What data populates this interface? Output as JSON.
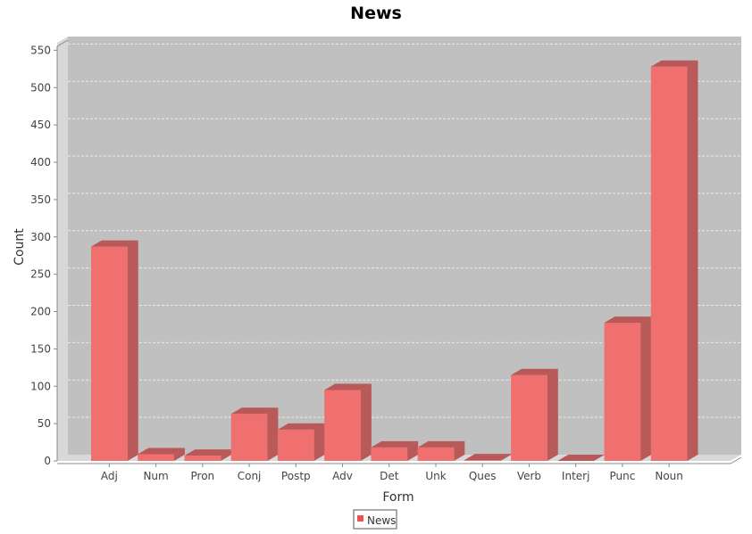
{
  "chart_data": {
    "type": "bar",
    "title": "News",
    "xlabel": "Form",
    "ylabel": "Count",
    "categories": [
      "Adj",
      "Num",
      "Pron",
      "Conj",
      "Postp",
      "Adv",
      "Det",
      "Unk",
      "Ques",
      "Verb",
      "Interj",
      "Punc",
      "Noun"
    ],
    "series": [
      {
        "name": "News",
        "values": [
          287,
          9,
          7,
          63,
          42,
          95,
          18,
          18,
          1,
          115,
          0,
          185,
          528
        ]
      }
    ],
    "ylim": [
      0,
      560
    ],
    "yticks": [
      0,
      50,
      100,
      150,
      200,
      250,
      300,
      350,
      400,
      450,
      500,
      550
    ],
    "grid": true,
    "legend_position": "bottom-center",
    "colors": {
      "bar_front": "#f07070",
      "bar_top": "#b85858",
      "bar_side": "#b85a5a",
      "plot_back": "#c0c0c0",
      "plot_wall": "#d8d8d8",
      "gridline": "#ececec",
      "legend_swatch": "#f05050"
    }
  }
}
